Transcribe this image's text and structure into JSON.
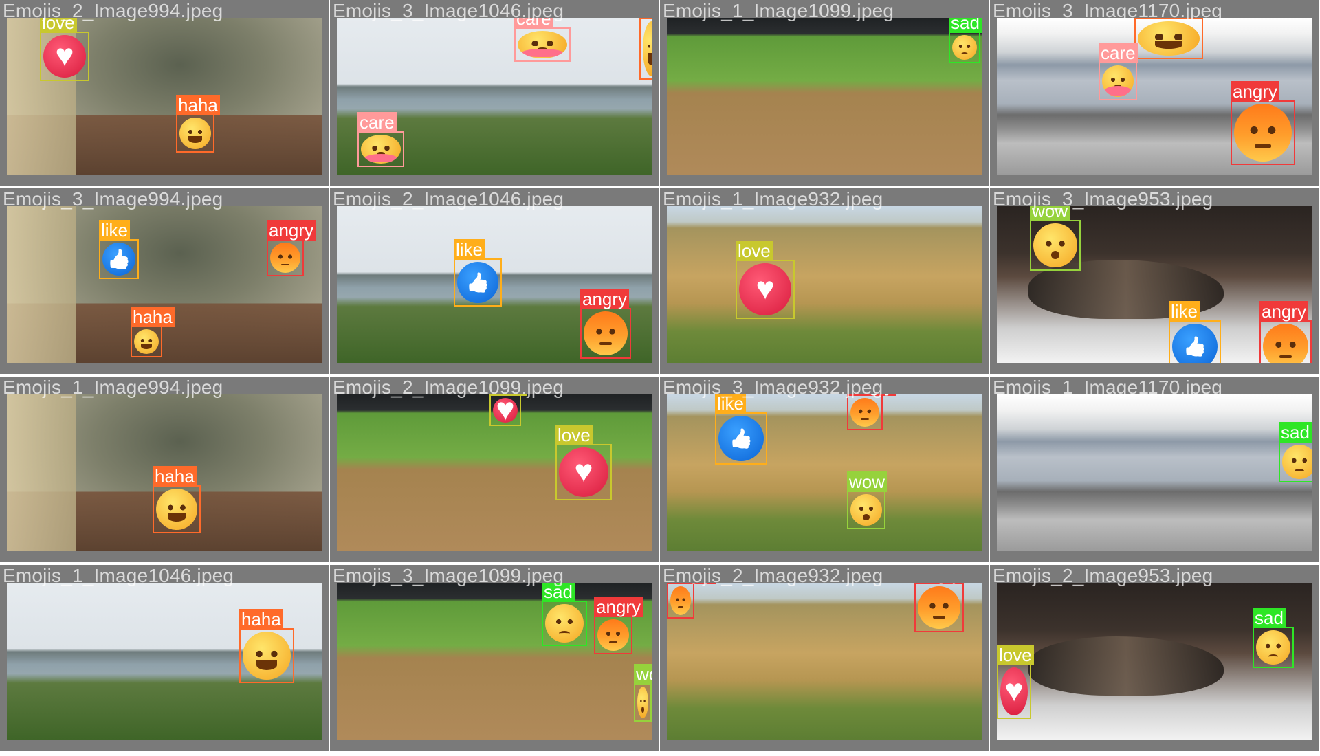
{
  "colors": {
    "tile_bg": "#7a7a7a",
    "label": {
      "love": "#c8c82e",
      "like": "#ffae1a",
      "haha": "#ff6a2a",
      "care": "#ff9a9a",
      "angry": "#f03a3a",
      "sad": "#2ee626",
      "wow": "#96d23c"
    }
  },
  "tiles": [
    {
      "filename": "Emojis_2_Image994.jpeg",
      "scene": "sc-cat",
      "detections": [
        {
          "label": "love",
          "kind": "love"
        },
        {
          "label": "haha",
          "kind": "haha"
        }
      ]
    },
    {
      "filename": "Emojis_3_Image1046.jpeg",
      "scene": "sc-sea",
      "detections": [
        {
          "label": "care",
          "kind": "care"
        },
        {
          "label": "care",
          "kind": "care"
        },
        {
          "label": "haha",
          "kind": "haha"
        }
      ]
    },
    {
      "filename": "Emojis_1_Image1099.jpeg",
      "scene": "sc-base",
      "detections": [
        {
          "label": "sad",
          "kind": "sad"
        }
      ]
    },
    {
      "filename": "Emojis_3_Image1170.jpeg",
      "scene": "sc-train",
      "detections": [
        {
          "label": "haha",
          "kind": "haha"
        },
        {
          "label": "care",
          "kind": "care"
        },
        {
          "label": "angry",
          "kind": "angry"
        }
      ]
    },
    {
      "filename": "Emojis_3_Image994.jpeg",
      "scene": "sc-cat",
      "detections": [
        {
          "label": "like",
          "kind": "like"
        },
        {
          "label": "angry",
          "kind": "angry"
        },
        {
          "label": "haha",
          "kind": "haha"
        }
      ]
    },
    {
      "filename": "Emojis_2_Image1046.jpeg",
      "scene": "sc-sea",
      "detections": [
        {
          "label": "like",
          "kind": "like"
        },
        {
          "label": "angry",
          "kind": "angry"
        }
      ]
    },
    {
      "filename": "Emojis_1_Image932.jpeg",
      "scene": "sc-zebra",
      "detections": [
        {
          "label": "love",
          "kind": "love"
        }
      ]
    },
    {
      "filename": "Emojis_3_Image953.jpeg",
      "scene": "sc-cat2",
      "detections": [
        {
          "label": "wow",
          "kind": "wow"
        },
        {
          "label": "like",
          "kind": "like"
        },
        {
          "label": "angry",
          "kind": "angry"
        }
      ]
    },
    {
      "filename": "Emojis_1_Image994.jpeg",
      "scene": "sc-cat",
      "detections": [
        {
          "label": "haha",
          "kind": "haha"
        }
      ]
    },
    {
      "filename": "Emojis_2_Image1099.jpeg",
      "scene": "sc-base",
      "detections": [
        {
          "label": "love",
          "kind": "love"
        },
        {
          "label": "love",
          "kind": "love"
        }
      ]
    },
    {
      "filename": "Emojis_3_Image932.jpeg",
      "scene": "sc-zebra",
      "detections": [
        {
          "label": "like",
          "kind": "like"
        },
        {
          "label": "angry",
          "kind": "angry"
        },
        {
          "label": "wow",
          "kind": "wow"
        }
      ]
    },
    {
      "filename": "Emojis_1_Image1170.jpeg",
      "scene": "sc-train",
      "detections": [
        {
          "label": "sad",
          "kind": "sad"
        }
      ]
    },
    {
      "filename": "Emojis_1_Image1046.jpeg",
      "scene": "sc-sea",
      "detections": [
        {
          "label": "haha",
          "kind": "haha"
        }
      ]
    },
    {
      "filename": "Emojis_3_Image1099.jpeg",
      "scene": "sc-base",
      "detections": [
        {
          "label": "sad",
          "kind": "sad"
        },
        {
          "label": "angry",
          "kind": "angry"
        },
        {
          "label": "wow",
          "kind": "wow"
        }
      ]
    },
    {
      "filename": "Emojis_2_Image932.jpeg",
      "scene": "sc-zebra",
      "detections": [
        {
          "label": "angry",
          "kind": "angry"
        },
        {
          "label": "angry",
          "kind": "angry"
        }
      ]
    },
    {
      "filename": "Emojis_2_Image953.jpeg",
      "scene": "sc-cat2",
      "detections": [
        {
          "label": "sad",
          "kind": "sad"
        },
        {
          "label": "love",
          "kind": "love"
        }
      ]
    }
  ]
}
